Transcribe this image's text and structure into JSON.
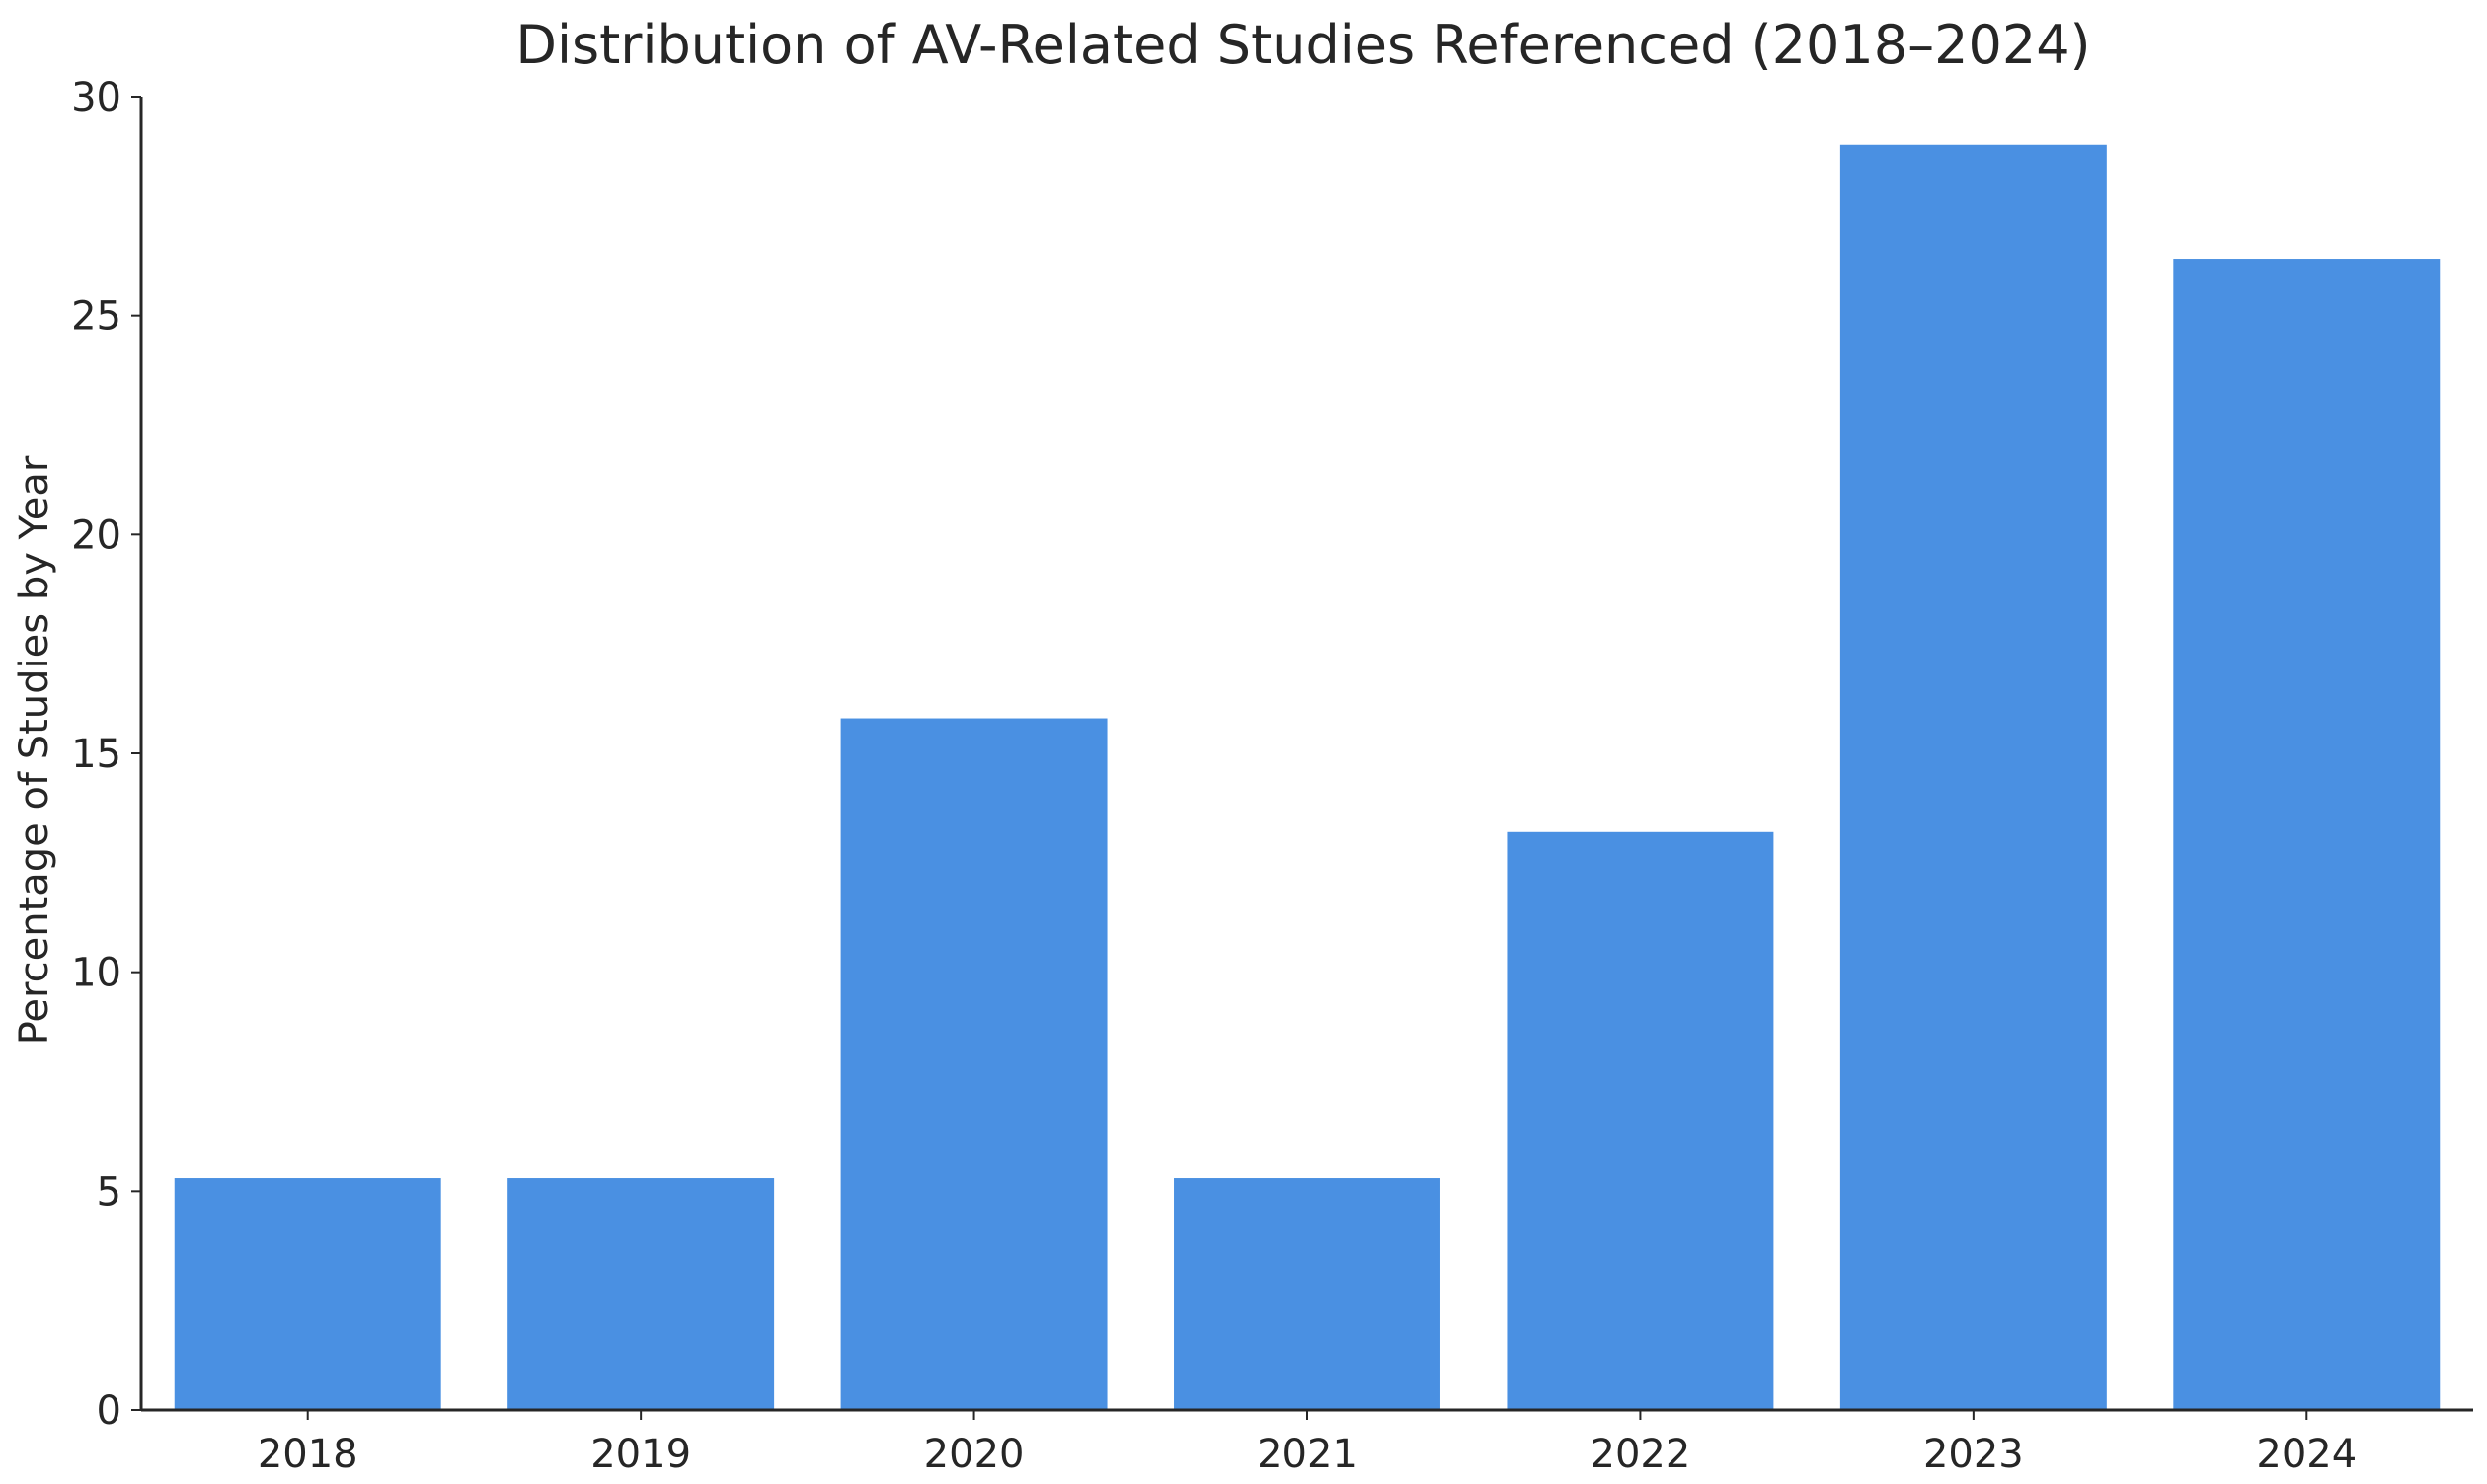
{
  "chart_data": {
    "type": "bar",
    "title": "Distribution of AV-Related Studies Referenced (2018–2024)",
    "xlabel": "",
    "ylabel": "Percentage of Studies by Year",
    "categories": [
      "2018",
      "2019",
      "2020",
      "2021",
      "2022",
      "2023",
      "2024"
    ],
    "values": [
      5.3,
      5.3,
      15.8,
      5.3,
      13.2,
      28.9,
      26.3
    ],
    "ylim": [
      0,
      30
    ],
    "yticks": [
      0,
      5,
      10,
      15,
      20,
      25,
      30
    ],
    "grid": false,
    "bar_color": "#4a90e2",
    "axis_color": "#262626"
  }
}
